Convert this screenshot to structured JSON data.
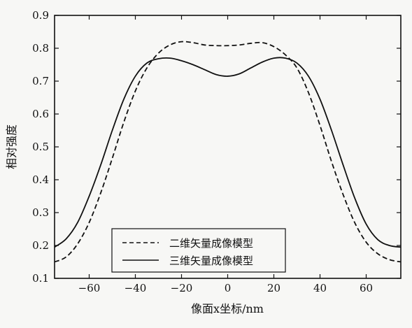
{
  "chart_data": {
    "type": "line",
    "title": "",
    "xlabel": "像面x坐标/nm",
    "ylabel": "相对强度",
    "xlim": [
      -75,
      75
    ],
    "ylim": [
      0.1,
      0.9
    ],
    "xticks": [
      -60,
      -40,
      -20,
      0,
      20,
      40,
      60
    ],
    "yticks": [
      0.1,
      0.2,
      0.3,
      0.4,
      0.5,
      0.6,
      0.7,
      0.8,
      0.9
    ],
    "xtick_labels": [
      "−60",
      "−40",
      "−20",
      "0",
      "20",
      "40",
      "60"
    ],
    "ytick_labels": [
      "0.1",
      "0.2",
      "0.3",
      "0.4",
      "0.5",
      "0.6",
      "0.7",
      "0.8",
      "0.9"
    ],
    "grid": false,
    "legend_position": "lower-center",
    "x": [
      -75,
      -70,
      -65,
      -60,
      -55,
      -50,
      -45,
      -40,
      -35,
      -30,
      -25,
      -20,
      -15,
      -10,
      -5,
      0,
      5,
      10,
      15,
      20,
      25,
      30,
      35,
      40,
      45,
      50,
      55,
      60,
      65,
      70,
      75
    ],
    "series": [
      {
        "name": "二维矢量成像模型",
        "style": "dashed",
        "color": "#111111",
        "values": [
          0.15,
          0.165,
          0.205,
          0.27,
          0.36,
          0.465,
          0.575,
          0.67,
          0.74,
          0.785,
          0.81,
          0.82,
          0.817,
          0.81,
          0.808,
          0.808,
          0.81,
          0.815,
          0.817,
          0.805,
          0.78,
          0.74,
          0.665,
          0.565,
          0.455,
          0.355,
          0.27,
          0.21,
          0.175,
          0.157,
          0.15
        ]
      },
      {
        "name": "三维矢量成像模型",
        "style": "solid",
        "color": "#111111",
        "values": [
          0.195,
          0.22,
          0.27,
          0.35,
          0.445,
          0.55,
          0.645,
          0.715,
          0.755,
          0.768,
          0.77,
          0.762,
          0.75,
          0.735,
          0.72,
          0.715,
          0.722,
          0.74,
          0.758,
          0.77,
          0.77,
          0.755,
          0.715,
          0.645,
          0.55,
          0.445,
          0.345,
          0.265,
          0.218,
          0.2,
          0.195
        ]
      }
    ]
  }
}
